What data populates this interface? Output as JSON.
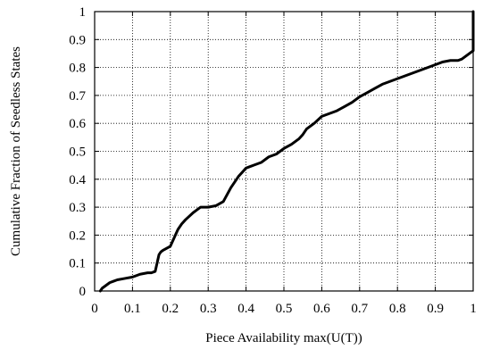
{
  "chart_data": {
    "type": "line",
    "title": "",
    "xlabel": "Piece Availability max(U(T))",
    "ylabel": "Cumulative Fraction of Seedless States",
    "xlim": [
      0,
      1
    ],
    "ylim": [
      0,
      1
    ],
    "xticks": [
      "0",
      "0.1",
      "0.2",
      "0.3",
      "0.4",
      "0.5",
      "0.6",
      "0.7",
      "0.8",
      "0.9",
      "1"
    ],
    "yticks": [
      "0",
      "0.1",
      "0.2",
      "0.3",
      "0.4",
      "0.5",
      "0.6",
      "0.7",
      "0.8",
      "0.9",
      "1"
    ],
    "grid": true,
    "legend": "none",
    "series": [
      {
        "color": "#000000",
        "x": [
          0.015,
          0.02,
          0.03,
          0.04,
          0.05,
          0.06,
          0.08,
          0.1,
          0.12,
          0.14,
          0.15,
          0.16,
          0.165,
          0.17,
          0.175,
          0.18,
          0.2,
          0.21,
          0.22,
          0.23,
          0.24,
          0.26,
          0.27,
          0.28,
          0.29,
          0.3,
          0.32,
          0.34,
          0.36,
          0.365,
          0.37,
          0.38,
          0.39,
          0.4,
          0.41,
          0.42,
          0.44,
          0.46,
          0.48,
          0.5,
          0.52,
          0.54,
          0.55,
          0.56,
          0.58,
          0.6,
          0.62,
          0.64,
          0.66,
          0.68,
          0.7,
          0.72,
          0.74,
          0.76,
          0.78,
          0.8,
          0.82,
          0.84,
          0.86,
          0.88,
          0.9,
          0.92,
          0.94,
          0.96,
          0.97,
          0.98,
          0.99,
          1.0,
          1.0
        ],
        "y": [
          0.0,
          0.01,
          0.02,
          0.03,
          0.035,
          0.04,
          0.045,
          0.05,
          0.06,
          0.065,
          0.065,
          0.07,
          0.1,
          0.13,
          0.14,
          0.145,
          0.16,
          0.19,
          0.22,
          0.24,
          0.255,
          0.28,
          0.29,
          0.3,
          0.3,
          0.3,
          0.305,
          0.32,
          0.37,
          0.38,
          0.39,
          0.41,
          0.425,
          0.44,
          0.445,
          0.45,
          0.46,
          0.48,
          0.49,
          0.51,
          0.525,
          0.545,
          0.56,
          0.58,
          0.6,
          0.625,
          0.635,
          0.645,
          0.66,
          0.675,
          0.695,
          0.71,
          0.725,
          0.74,
          0.75,
          0.76,
          0.77,
          0.78,
          0.79,
          0.8,
          0.81,
          0.82,
          0.825,
          0.825,
          0.83,
          0.84,
          0.85,
          0.86,
          1.0
        ]
      }
    ]
  }
}
